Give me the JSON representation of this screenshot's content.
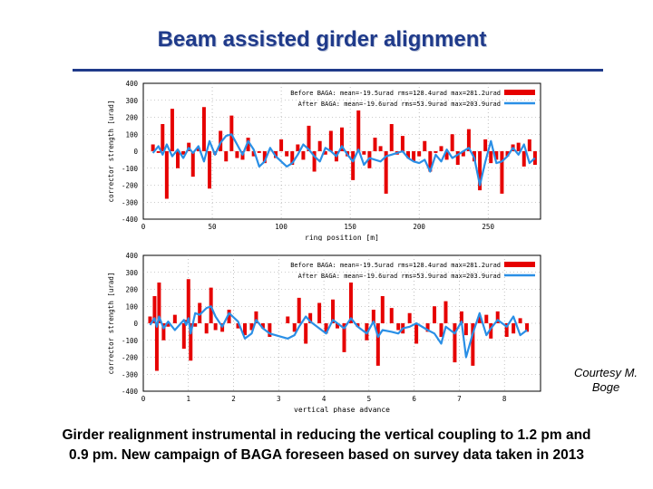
{
  "slide": {
    "title": "Beam assisted girder alignment",
    "credit_line1": "Courtesy M.",
    "credit_line2": "Boge",
    "caption_line1": "Girder realignment instrumental in reducing the vertical coupling to 1.2 pm and",
    "caption_line2": "0.9 pm. New campaign of BAGA foreseen based on survey data taken in 2013"
  },
  "colors": {
    "before": "#e60000",
    "after": "#2a8fe6",
    "title": "#1f3a8a",
    "grid": "#999999"
  },
  "chart_data": [
    {
      "type": "bar",
      "xlabel": "ring position [m]",
      "ylabel": "corrector strength [urad]",
      "xlim": [
        0,
        288
      ],
      "ylim": [
        -400,
        400
      ],
      "xticks": [
        0,
        50,
        100,
        150,
        200,
        250
      ],
      "yticks": [
        -400,
        -300,
        -200,
        -100,
        0,
        100,
        200,
        300,
        400
      ],
      "legend_position": "top-right",
      "series": [
        {
          "name": "Before BAGA: mean=-19.5urad rms=128.4urad max=281.2urad",
          "kind": "bars",
          "x": [
            7,
            11,
            14,
            17,
            21,
            25,
            29,
            33,
            36,
            40,
            44,
            48,
            52,
            56,
            60,
            64,
            68,
            72,
            76,
            80,
            84,
            88,
            92,
            96,
            100,
            104,
            108,
            112,
            116,
            120,
            124,
            128,
            132,
            136,
            140,
            144,
            148,
            152,
            156,
            160,
            164,
            168,
            172,
            176,
            180,
            184,
            188,
            192,
            196,
            200,
            204,
            208,
            212,
            216,
            220,
            224,
            228,
            232,
            236,
            240,
            244,
            248,
            252,
            256,
            260,
            264,
            268,
            272,
            276,
            280,
            284
          ],
          "y": [
            40,
            -10,
            160,
            -280,
            250,
            -100,
            -20,
            50,
            -150,
            20,
            260,
            -220,
            -20,
            120,
            -60,
            210,
            -40,
            -50,
            80,
            -30,
            -10,
            -70,
            0,
            -40,
            70,
            -30,
            -80,
            40,
            -50,
            150,
            -120,
            60,
            -20,
            120,
            -60,
            140,
            -30,
            -170,
            240,
            -20,
            -100,
            80,
            30,
            -250,
            160,
            -20,
            90,
            -40,
            -60,
            -30,
            60,
            -120,
            -10,
            30,
            -50,
            100,
            -80,
            -30,
            130,
            -60,
            -230,
            70,
            -70,
            -50,
            -250,
            -30,
            40,
            50,
            -90,
            70,
            -80
          ]
        },
        {
          "name": "After BAGA: mean=-19.6urad rms=53.9urad max=203.9urad",
          "kind": "line",
          "x": [
            7,
            11,
            14,
            17,
            21,
            25,
            29,
            33,
            36,
            40,
            44,
            48,
            52,
            56,
            60,
            64,
            68,
            72,
            76,
            80,
            84,
            88,
            92,
            96,
            100,
            104,
            108,
            112,
            116,
            120,
            124,
            128,
            132,
            136,
            140,
            144,
            148,
            152,
            156,
            160,
            164,
            168,
            172,
            176,
            180,
            184,
            188,
            192,
            196,
            200,
            204,
            208,
            212,
            216,
            220,
            224,
            228,
            232,
            236,
            240,
            244,
            248,
            252,
            256,
            260,
            264,
            268,
            272,
            276,
            280,
            284
          ],
          "y": [
            -10,
            30,
            -20,
            40,
            -30,
            10,
            -40,
            20,
            -10,
            30,
            -60,
            60,
            -20,
            50,
            90,
            100,
            40,
            -20,
            60,
            10,
            -90,
            -60,
            20,
            -30,
            -60,
            -90,
            -70,
            -20,
            40,
            10,
            -30,
            -60,
            20,
            0,
            -30,
            30,
            -20,
            -60,
            10,
            -80,
            -40,
            -50,
            -60,
            -30,
            -20,
            -10,
            0,
            -40,
            -60,
            -70,
            -50,
            -120,
            -20,
            -60,
            10,
            -40,
            -20,
            0,
            20,
            -40,
            -200,
            -60,
            60,
            -70,
            -60,
            -30,
            20,
            -20,
            40,
            -70,
            -40
          ]
        }
      ]
    },
    {
      "type": "bar",
      "xlabel": "vertical phase advance",
      "ylabel": "corrector strength [urad]",
      "xlim": [
        0,
        8.8
      ],
      "ylim": [
        -400,
        400
      ],
      "xticks": [
        0,
        1,
        2,
        3,
        4,
        5,
        6,
        7,
        8
      ],
      "yticks": [
        -400,
        -300,
        -200,
        -100,
        0,
        100,
        200,
        300,
        400
      ],
      "legend_position": "top-right",
      "series": [
        {
          "name": "Before BAGA: mean=-19.5urad rms=128.4urad max=281.2urad",
          "kind": "bars",
          "x": [
            0.15,
            0.25,
            0.3,
            0.35,
            0.45,
            0.55,
            0.7,
            0.9,
            0.95,
            1.0,
            1.05,
            1.15,
            1.25,
            1.4,
            1.5,
            1.6,
            1.75,
            1.9,
            2.1,
            2.25,
            2.4,
            2.5,
            2.65,
            2.8,
            3.2,
            3.35,
            3.45,
            3.6,
            3.7,
            3.9,
            4.05,
            4.2,
            4.3,
            4.45,
            4.6,
            4.75,
            4.95,
            5.1,
            5.2,
            5.3,
            5.5,
            5.65,
            5.75,
            5.9,
            6.05,
            6.3,
            6.45,
            6.6,
            6.7,
            6.9,
            7.05,
            7.15,
            7.3,
            7.45,
            7.6,
            7.7,
            7.85,
            8.05,
            8.2,
            8.35,
            8.5
          ],
          "y": [
            40,
            160,
            -280,
            240,
            -100,
            -20,
            50,
            -150,
            20,
            260,
            -220,
            -20,
            120,
            -60,
            210,
            -40,
            -50,
            80,
            -30,
            -70,
            -40,
            70,
            -30,
            -80,
            40,
            -50,
            150,
            -120,
            60,
            120,
            -60,
            140,
            -30,
            -170,
            240,
            -20,
            -100,
            80,
            -250,
            160,
            90,
            -40,
            -60,
            60,
            -120,
            -50,
            100,
            -80,
            130,
            -230,
            70,
            -70,
            -250,
            40,
            50,
            -90,
            70,
            -80,
            -60,
            30,
            -50
          ]
        },
        {
          "name": "After BAGA: mean=-19.6urad rms=53.9urad max=203.9urad",
          "kind": "line",
          "x": [
            0.15,
            0.25,
            0.3,
            0.35,
            0.45,
            0.55,
            0.7,
            0.9,
            0.95,
            1.0,
            1.05,
            1.15,
            1.25,
            1.4,
            1.5,
            1.6,
            1.75,
            1.9,
            2.1,
            2.25,
            2.4,
            2.5,
            2.65,
            2.8,
            3.2,
            3.35,
            3.45,
            3.6,
            3.7,
            3.9,
            4.05,
            4.2,
            4.3,
            4.45,
            4.6,
            4.75,
            4.95,
            5.1,
            5.2,
            5.3,
            5.5,
            5.65,
            5.75,
            5.9,
            6.05,
            6.3,
            6.45,
            6.6,
            6.7,
            6.9,
            7.05,
            7.15,
            7.3,
            7.45,
            7.6,
            7.7,
            7.85,
            8.05,
            8.2,
            8.35,
            8.5
          ],
          "y": [
            -10,
            30,
            -20,
            40,
            -30,
            10,
            -40,
            20,
            -10,
            30,
            -60,
            60,
            50,
            90,
            100,
            40,
            -20,
            60,
            10,
            -90,
            -60,
            20,
            -30,
            -60,
            -90,
            -70,
            -20,
            40,
            10,
            -30,
            -60,
            20,
            0,
            -30,
            30,
            -20,
            -60,
            10,
            -80,
            -40,
            -50,
            -60,
            -30,
            -20,
            0,
            -40,
            -60,
            -120,
            -20,
            -60,
            10,
            -200,
            -60,
            60,
            -70,
            -30,
            20,
            -20,
            40,
            -70,
            -40
          ]
        }
      ]
    }
  ]
}
